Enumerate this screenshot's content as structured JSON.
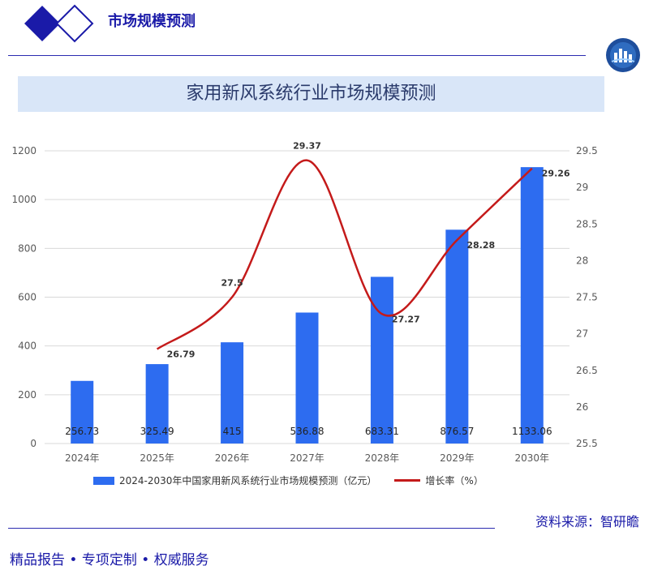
{
  "header": {
    "title": "市场规模预测"
  },
  "banner": {
    "title": "家用新风系统行业市场规模预测"
  },
  "source_text": "资料来源：智研瞻",
  "footer": {
    "item1": "精品报告",
    "item2": "专项定制",
    "item3": "权威服务"
  },
  "colors": {
    "brand": "#1a1aa8",
    "bar": "#2d6cf0",
    "line": "#c41a1a",
    "banner_bg": "#d9e6f8"
  },
  "chart_data": {
    "type": "bar",
    "title": "家用新风系统行业市场规模预测",
    "categories": [
      "2024年",
      "2025年",
      "2026年",
      "2027年",
      "2028年",
      "2029年",
      "2030年"
    ],
    "series": [
      {
        "name": "2024-2030年中国家用新风系统行业市场规模预测（亿元）",
        "type": "bar",
        "axis": "left",
        "values": [
          256.73,
          325.49,
          415,
          536.88,
          683.31,
          876.57,
          1133.06
        ],
        "labels": [
          "256.73",
          "325.49",
          "415",
          "536.88",
          "683.31",
          "876.57",
          "1133.06"
        ]
      },
      {
        "name": "增长率（%）",
        "type": "line",
        "axis": "right",
        "values": [
          null,
          26.79,
          27.5,
          29.37,
          27.27,
          28.28,
          29.26
        ],
        "labels": [
          "",
          "26.79",
          "27.5",
          "29.37",
          "27.27",
          "28.28",
          "29.26"
        ]
      }
    ],
    "y_left": {
      "min": 0,
      "max": 1200,
      "ticks": [
        "0",
        "200",
        "400",
        "600",
        "800",
        "1000",
        "1200"
      ]
    },
    "y_right": {
      "min": 25.5,
      "max": 29.5,
      "ticks": [
        "25.5",
        "26",
        "26.5",
        "27",
        "27.5",
        "28",
        "28.5",
        "29",
        "29.5"
      ]
    },
    "grid": true,
    "legend_position": "bottom"
  }
}
